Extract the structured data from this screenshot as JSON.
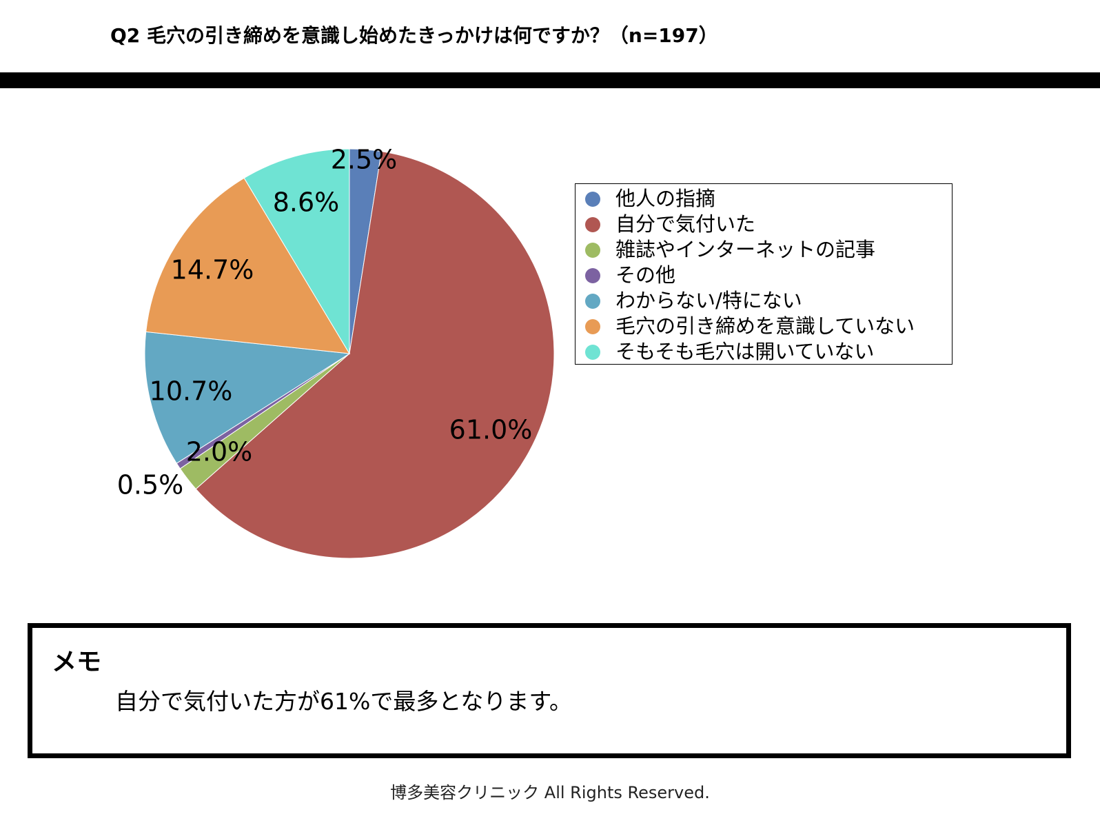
{
  "header": {
    "title": "Q2 毛穴の引き締めを意識し始めたきっかけは何ですか？（n=197）"
  },
  "chart_data": {
    "type": "pie",
    "title": "Q2 毛穴の引き締めを意識し始めたきっかけは何ですか？（n=197）",
    "categories": [
      "他人の指摘",
      "自分で気付いた",
      "雑誌やインターネットの記事",
      "その他",
      "わからない/特にない",
      "毛穴の引き締めを意識していない",
      "そもそも毛穴は開いていない"
    ],
    "values": [
      2.5,
      61.0,
      2.0,
      0.5,
      10.7,
      14.7,
      8.6
    ],
    "labels": [
      "2.5%",
      "61.0%",
      "2.0%",
      "0.5%",
      "10.7%",
      "14.7%",
      "8.6%"
    ],
    "colors": [
      "#5a7fb8",
      "#b05752",
      "#9ebb63",
      "#7c62a1",
      "#63a8c3",
      "#e89b55",
      "#6fe3d3"
    ],
    "legend_position": "right"
  },
  "memo": {
    "title": "メモ",
    "text": "自分で気付いた方が61%で最多となります。"
  },
  "footer": {
    "text": "博多美容クリニック  All Rights Reserved."
  }
}
